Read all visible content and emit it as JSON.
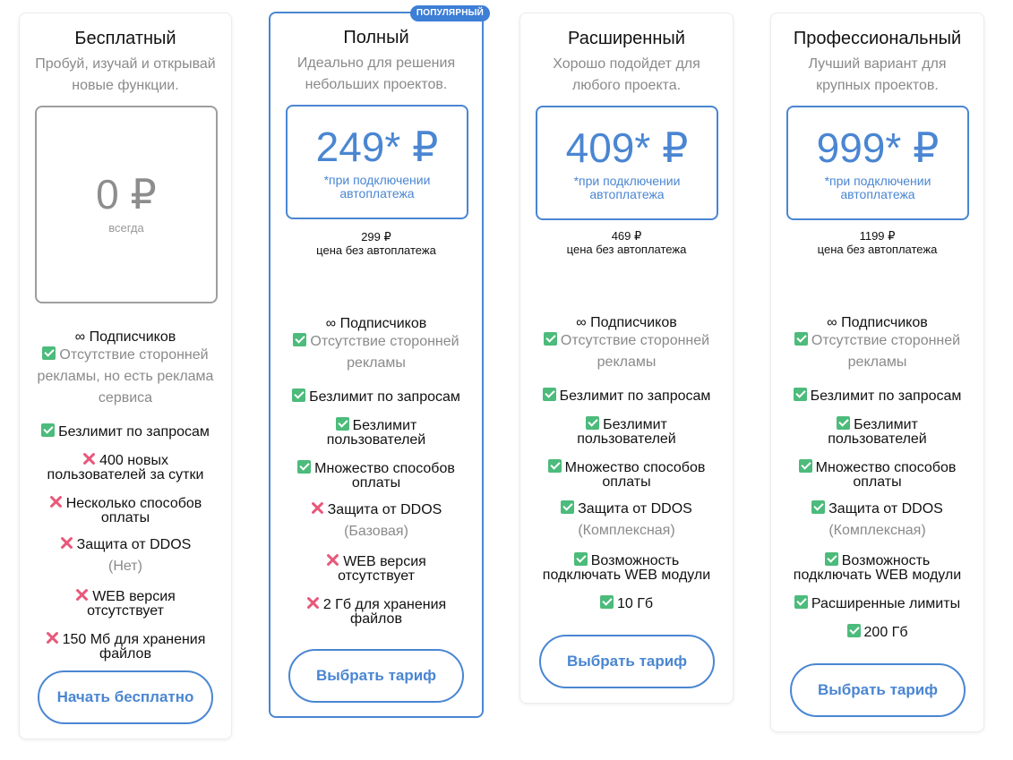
{
  "plans": [
    {
      "title": "Бесплатный",
      "desc": [
        "Пробуй, изучай и открывай",
        "новые функции."
      ],
      "price": "0 ₽",
      "price_note": [
        "всегда"
      ],
      "button": "Начать бесплатно"
    },
    {
      "title": "Полный",
      "badge": "ПОПУЛЯРНЫЙ",
      "desc": [
        "Идеально для решения",
        "небольших проектов."
      ],
      "price": "249* ₽",
      "price_note": [
        "*при подключении",
        "автоплатежа"
      ],
      "old_price": "299 ₽",
      "old_price_label": "цена без автоплатежа",
      "button": "Выбрать тариф"
    },
    {
      "title": "Расширенный",
      "desc": [
        "Хорошо подойдет для",
        "любого проекта."
      ],
      "price": "409* ₽",
      "price_note": [
        "*при подключении",
        "автоплатежа"
      ],
      "old_price": "469 ₽",
      "old_price_label": "цена без автоплатежа",
      "button": "Выбрать тариф"
    },
    {
      "title": "Профессиональный",
      "desc": [
        "Лучший вариант для",
        "крупных проектов."
      ],
      "price": "999* ₽",
      "price_note": [
        "*при подключении",
        "автоплатежа"
      ],
      "old_price": "1199 ₽",
      "old_price_label": "цена без автоплатежа",
      "button": "Выбрать тариф"
    }
  ],
  "features": {
    "free": {
      "subscribers": "∞ Подписчиков",
      "ads": [
        "Отсутствие сторонней",
        "рекламы, но есть реклама",
        "сервиса"
      ],
      "requests": "Безлимит по запросам",
      "users": [
        "400 новых",
        "пользователей за сутки"
      ],
      "payments": [
        "Несколько способов",
        "оплаты"
      ],
      "ddos": [
        "Защита от DDOS",
        "(Нет)"
      ],
      "web": [
        "WEB версия",
        "отсутствует"
      ],
      "storage": [
        "150 Мб для хранения",
        "файлов"
      ]
    },
    "full": {
      "subscribers": "∞ Подписчиков",
      "ads": [
        "Отсутствие сторонней",
        "рекламы"
      ],
      "requests": "Безлимит по запросам",
      "users": [
        "Безлимит",
        "пользователей"
      ],
      "payments": [
        "Множество способов",
        "оплаты"
      ],
      "ddos": [
        "Защита от DDOS",
        "(Базовая)"
      ],
      "web": [
        "WEB версия",
        "отсутствует"
      ],
      "storage": [
        "2 Гб для хранения",
        "файлов"
      ]
    },
    "extended": {
      "subscribers": "∞ Подписчиков",
      "ads": [
        "Отсутствие сторонней",
        "рекламы"
      ],
      "requests": "Безлимит по запросам",
      "users": [
        "Безлимит",
        "пользователей"
      ],
      "payments": [
        "Множество способов",
        "оплаты"
      ],
      "ddos": [
        "Защита от DDOS",
        "(Комплексная)"
      ],
      "web": [
        "Возможность",
        "подключать WEB модули"
      ],
      "storage": "10 Гб"
    },
    "pro": {
      "subscribers": "∞ Подписчиков",
      "ads": [
        "Отсутствие сторонней",
        "рекламы"
      ],
      "requests": "Безлимит по запросам",
      "users": [
        "Безлимит",
        "пользователей"
      ],
      "payments": [
        "Множество способов",
        "оплаты"
      ],
      "ddos": [
        "Защита от DDOS",
        "(Комплексная)"
      ],
      "web": [
        "Возможность",
        "подключать WEB модули"
      ],
      "limits": "Расширенные лимиты",
      "storage": "200 Гб"
    }
  },
  "colors": {
    "accent": "#4a86d2",
    "badge": "#3d7ed6",
    "check": "#4cbb7b",
    "cross": "#e8587a",
    "muted_text": "#8a8a8a",
    "free_border": "#9e9e9e"
  }
}
